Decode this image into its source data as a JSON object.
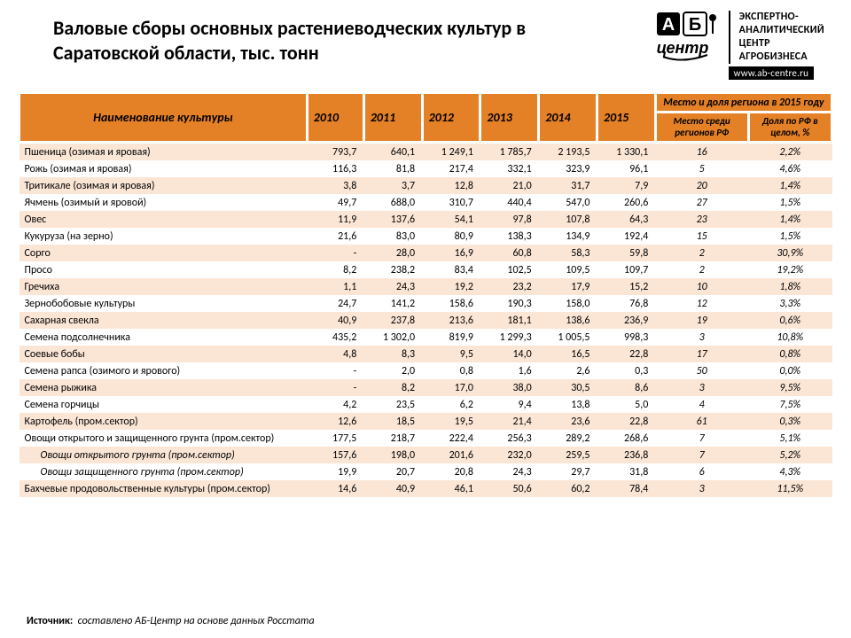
{
  "title": "Валовые сборы основных растениеводческих культур в Саратовской области, тыс. тонн",
  "logo": {
    "ab": "АБ",
    "center": "центр",
    "line1": "ЭКСПЕРТНО-",
    "line2": "АНАЛИТИЧЕСКИЙ",
    "line3": "ЦЕНТР",
    "line4": "АГРОБИЗНЕСА",
    "url": "www.ab-centre.ru"
  },
  "table": {
    "header": {
      "name": "Наименование культуры",
      "years": [
        "2010",
        "2011",
        "2012",
        "2013",
        "2014",
        "2015"
      ],
      "region_top": "Место и доля региона в 2015 году",
      "rank": "Место среди регионов РФ",
      "share": "Доля по РФ в целом, %"
    },
    "styling": {
      "header_bg": "#e48026",
      "row_odd_bg": "#fbe6d6",
      "row_even_bg": "#ffffff",
      "font_size_body": 12,
      "font_size_header": 14,
      "border_color": "#ffffff",
      "text_color": "#000000"
    },
    "rows": [
      {
        "name": "Пшеница (озимая и яровая)",
        "y": [
          "793,7",
          "640,1",
          "1 249,1",
          "1 785,7",
          "2 193,5",
          "1 330,1"
        ],
        "rank": "16",
        "share": "2,2%"
      },
      {
        "name": "Рожь (озимая и яровая)",
        "y": [
          "116,3",
          "81,8",
          "217,4",
          "332,1",
          "323,9",
          "96,1"
        ],
        "rank": "5",
        "share": "4,6%"
      },
      {
        "name": "Тритикале (озимая и яровая)",
        "y": [
          "3,8",
          "3,7",
          "12,8",
          "21,0",
          "31,7",
          "7,9"
        ],
        "rank": "20",
        "share": "1,4%"
      },
      {
        "name": "Ячмень (озимый и яровой)",
        "y": [
          "49,7",
          "688,0",
          "310,7",
          "440,4",
          "547,0",
          "260,6"
        ],
        "rank": "27",
        "share": "1,5%"
      },
      {
        "name": "Овес",
        "y": [
          "11,9",
          "137,6",
          "54,1",
          "97,8",
          "107,8",
          "64,3"
        ],
        "rank": "23",
        "share": "1,4%"
      },
      {
        "name": "Кукуруза (на зерно)",
        "y": [
          "21,6",
          "83,0",
          "80,9",
          "138,3",
          "134,9",
          "192,4"
        ],
        "rank": "15",
        "share": "1,5%"
      },
      {
        "name": "Сорго",
        "y": [
          "-",
          "28,0",
          "16,9",
          "60,8",
          "58,3",
          "59,8"
        ],
        "rank": "2",
        "share": "30,9%"
      },
      {
        "name": "Просо",
        "y": [
          "8,2",
          "238,2",
          "83,4",
          "102,5",
          "109,5",
          "109,7"
        ],
        "rank": "2",
        "share": "19,2%"
      },
      {
        "name": "Гречиха",
        "y": [
          "1,1",
          "24,3",
          "19,2",
          "23,2",
          "17,9",
          "15,2"
        ],
        "rank": "10",
        "share": "1,8%"
      },
      {
        "name": "Зернобобовые культуры",
        "y": [
          "24,7",
          "141,2",
          "158,6",
          "190,3",
          "158,0",
          "76,8"
        ],
        "rank": "12",
        "share": "3,3%"
      },
      {
        "name": "Сахарная свекла",
        "y": [
          "40,9",
          "237,8",
          "213,6",
          "181,1",
          "138,6",
          "236,9"
        ],
        "rank": "19",
        "share": "0,6%"
      },
      {
        "name": "Семена подсолнечника",
        "y": [
          "435,2",
          "1 302,0",
          "819,9",
          "1 299,3",
          "1 005,5",
          "998,3"
        ],
        "rank": "3",
        "share": "10,8%"
      },
      {
        "name": "Соевые бобы",
        "y": [
          "4,8",
          "8,3",
          "9,5",
          "14,0",
          "16,5",
          "22,8"
        ],
        "rank": "17",
        "share": "0,8%"
      },
      {
        "name": "Семена рапса (озимого и ярового)",
        "y": [
          "-",
          "2,0",
          "0,8",
          "1,6",
          "2,6",
          "0,3"
        ],
        "rank": "50",
        "share": "0,0%"
      },
      {
        "name": "Семена рыжика",
        "y": [
          "-",
          "8,2",
          "17,0",
          "38,0",
          "30,5",
          "8,6"
        ],
        "rank": "3",
        "share": "9,5%"
      },
      {
        "name": "Семена горчицы",
        "y": [
          "4,2",
          "23,5",
          "6,2",
          "9,4",
          "13,8",
          "5,0"
        ],
        "rank": "4",
        "share": "7,5%"
      },
      {
        "name": "Картофель (пром.сектор)",
        "y": [
          "12,6",
          "18,5",
          "19,5",
          "21,4",
          "23,6",
          "22,8"
        ],
        "rank": "61",
        "share": "0,3%"
      },
      {
        "name": "Овощи открытого и защищенного грунта (пром.сектор)",
        "y": [
          "177,5",
          "218,7",
          "222,4",
          "256,3",
          "289,2",
          "268,6"
        ],
        "rank": "7",
        "share": "5,1%"
      },
      {
        "name": "Овощи открытого грунта (пром.сектор)",
        "y": [
          "157,6",
          "198,0",
          "201,6",
          "232,0",
          "259,5",
          "236,8"
        ],
        "rank": "7",
        "share": "5,2%",
        "indent": true
      },
      {
        "name": "Овощи защищенного грунта (пром.сектор)",
        "y": [
          "19,9",
          "20,7",
          "20,8",
          "24,3",
          "29,7",
          "31,8"
        ],
        "rank": "6",
        "share": "4,3%",
        "indent": true
      },
      {
        "name": "Бахчевые продовольственные культуры (пром.сектор)",
        "y": [
          "14,6",
          "40,9",
          "46,1",
          "50,6",
          "60,2",
          "78,4"
        ],
        "rank": "3",
        "share": "11,5%"
      }
    ]
  },
  "source": {
    "label": "Источник:",
    "text": "составлено АБ-Центр на основе данных Росстата"
  }
}
